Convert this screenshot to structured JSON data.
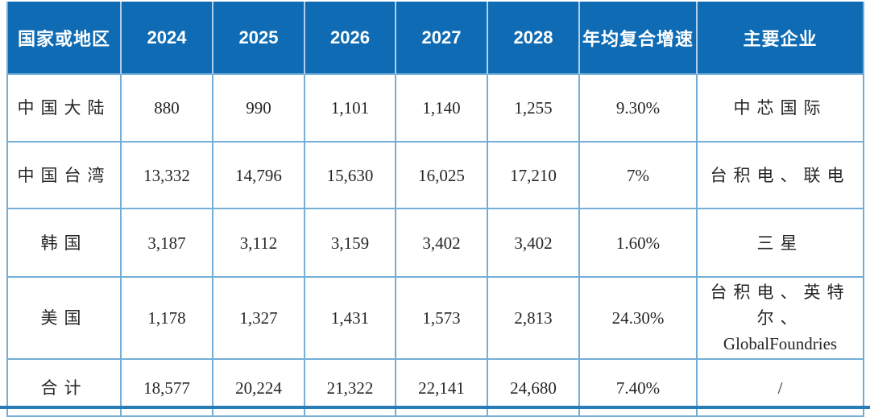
{
  "table": {
    "header": {
      "region": "国家或地区",
      "years": [
        "2024",
        "2025",
        "2026",
        "2027",
        "2028"
      ],
      "cagr": "年均复合增速",
      "players": "主要企业"
    },
    "rows": [
      {
        "region": "中国大陆",
        "y2024": "880",
        "y2025": "990",
        "y2026": "1,101",
        "y2027": "1,140",
        "y2028": "1,255",
        "cagr": "9.30%",
        "players": "中芯国际"
      },
      {
        "region": "中国台湾",
        "y2024": "13,332",
        "y2025": "14,796",
        "y2026": "15,630",
        "y2027": "16,025",
        "y2028": "17,210",
        "cagr": "7%",
        "players": "台积电、联电"
      },
      {
        "region": "韩国",
        "y2024": "3,187",
        "y2025": "3,112",
        "y2026": "3,159",
        "y2027": "3,402",
        "y2028": "3,402",
        "cagr": "1.60%",
        "players": "三星"
      },
      {
        "region": "美国",
        "y2024": "1,178",
        "y2025": "1,327",
        "y2026": "1,431",
        "y2027": "1,573",
        "y2028": "2,813",
        "cagr": "24.30%",
        "players": "台积电、英特尔、",
        "players_line2": "GlobalFoundries"
      },
      {
        "region": "合计",
        "y2024": "18,577",
        "y2025": "20,224",
        "y2026": "21,322",
        "y2027": "22,141",
        "y2028": "24,680",
        "cagr": "7.40%",
        "players": "/"
      }
    ]
  },
  "colors": {
    "header_bg": "#0f6cb4",
    "header_text": "#ffffff",
    "grid_border": "#74aed6",
    "header_divider": "#aecfec",
    "bottom_rule": "#2a7cb8",
    "body_text": "#262626"
  }
}
